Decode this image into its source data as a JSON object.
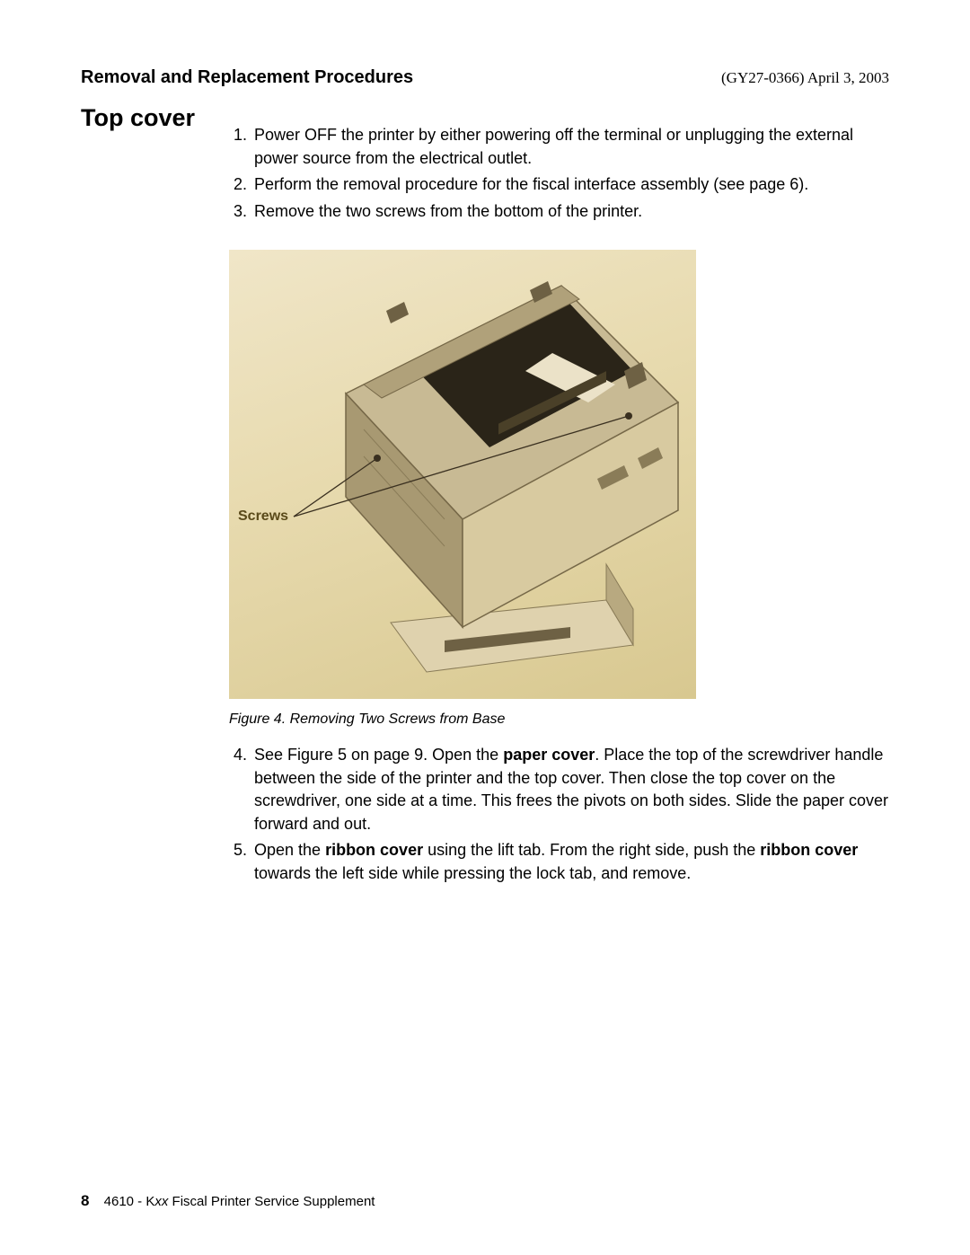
{
  "header": {
    "section": "Removal and Replacement Procedures",
    "docref": "(GY27-0366) April 3, 2003"
  },
  "title": "Top cover",
  "steps_a": [
    {
      "n": "1.",
      "text": "Power OFF the printer by either powering off the terminal or unplugging the external power source from the electrical outlet."
    },
    {
      "n": "2.",
      "text": "Perform the removal procedure for the fiscal interface assembly (see page 6)."
    },
    {
      "n": "3.",
      "text": "Remove the two screws from the bottom of the printer."
    }
  ],
  "figure": {
    "label": "Screws",
    "caption": "Figure 4. Removing Two Screws from Base",
    "colors": {
      "bg_light": "#f0e6c8",
      "bg_dark": "#d8c890",
      "body_light": "#e8dcc0",
      "body_mid": "#ccbd96",
      "body_dark": "#9a8b68",
      "panel_dark": "#2a2418",
      "line": "#3a3020"
    }
  },
  "steps_b": [
    {
      "n": "4.",
      "parts": [
        {
          "t": "See Figure 5 on page 9. Open the "
        },
        {
          "t": "paper cover",
          "b": true
        },
        {
          "t": ". Place the top of the screwdriver handle between the side of the printer and the top cover. Then close the top cover on the screwdriver, one side at a time. This frees the pivots on both sides. Slide the paper cover forward and out."
        }
      ]
    },
    {
      "n": "5.",
      "parts": [
        {
          "t": "Open the "
        },
        {
          "t": "ribbon cover",
          "b": true
        },
        {
          "t": " using the lift tab. From the right side, push the "
        },
        {
          "t": "ribbon cover",
          "b": true
        },
        {
          "t": " towards the left side while pressing the lock tab, and remove."
        }
      ]
    }
  ],
  "footer": {
    "page": "8",
    "prefix": "4610 - K",
    "ital": "xx",
    "suffix": " Fiscal Printer Service Supplement"
  }
}
